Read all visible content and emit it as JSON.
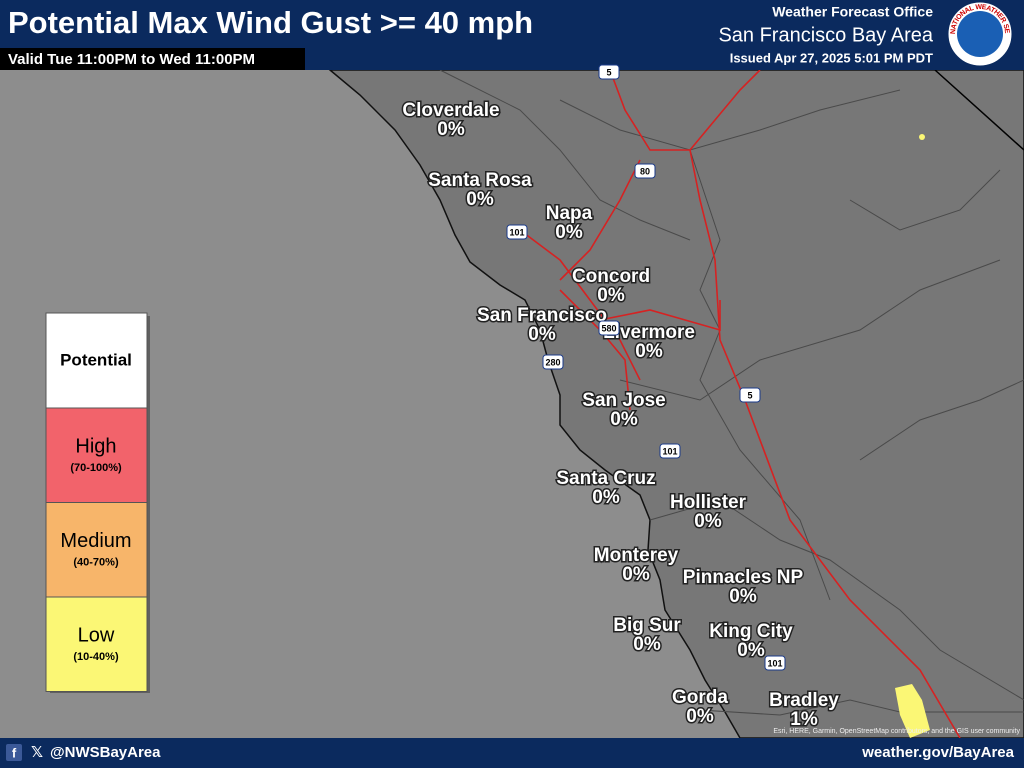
{
  "header": {
    "title": "Potential Max Wind Gust >= 40 mph",
    "valid": "Valid Tue 11:00PM to Wed 11:00PM",
    "office": "Weather Forecast Office",
    "region": "San Francisco Bay Area",
    "issued": "Issued Apr 27, 2025 5:01 PM PDT",
    "logo_text": "NATIONAL WEATHER SERVICE"
  },
  "legend": {
    "title": "Potential",
    "items": [
      {
        "label": "High",
        "range": "(70-100%)",
        "color": "#f2636b"
      },
      {
        "label": "Medium",
        "range": "(40-70%)",
        "color": "#f7b56a"
      },
      {
        "label": "Low",
        "range": "(10-40%)",
        "color": "#fbf775"
      }
    ]
  },
  "cities": [
    {
      "name": "Cloverdale",
      "value": "0%"
    },
    {
      "name": "Santa Rosa",
      "value": "0%"
    },
    {
      "name": "Napa",
      "value": "0%"
    },
    {
      "name": "Concord",
      "value": "0%"
    },
    {
      "name": "San Francisco",
      "value": "0%"
    },
    {
      "name": "Livermore",
      "value": "0%"
    },
    {
      "name": "San Jose",
      "value": "0%"
    },
    {
      "name": "Santa Cruz",
      "value": "0%"
    },
    {
      "name": "Hollister",
      "value": "0%"
    },
    {
      "name": "Monterey",
      "value": "0%"
    },
    {
      "name": "Pinnacles NP",
      "value": "0%"
    },
    {
      "name": "Big Sur",
      "value": "0%"
    },
    {
      "name": "King City",
      "value": "0%"
    },
    {
      "name": "Gorda",
      "value": "0%"
    },
    {
      "name": "Bradley",
      "value": "1%"
    }
  ],
  "highways": [
    "5",
    "80",
    "101",
    "580",
    "280",
    "5",
    "101",
    "101"
  ],
  "attribution": "Esri, HERE, Garmin, OpenStreetMap contributors, and the GIS user community",
  "footer": {
    "handle": "@NWSBayArea",
    "site": "weather.gov/BayArea"
  }
}
